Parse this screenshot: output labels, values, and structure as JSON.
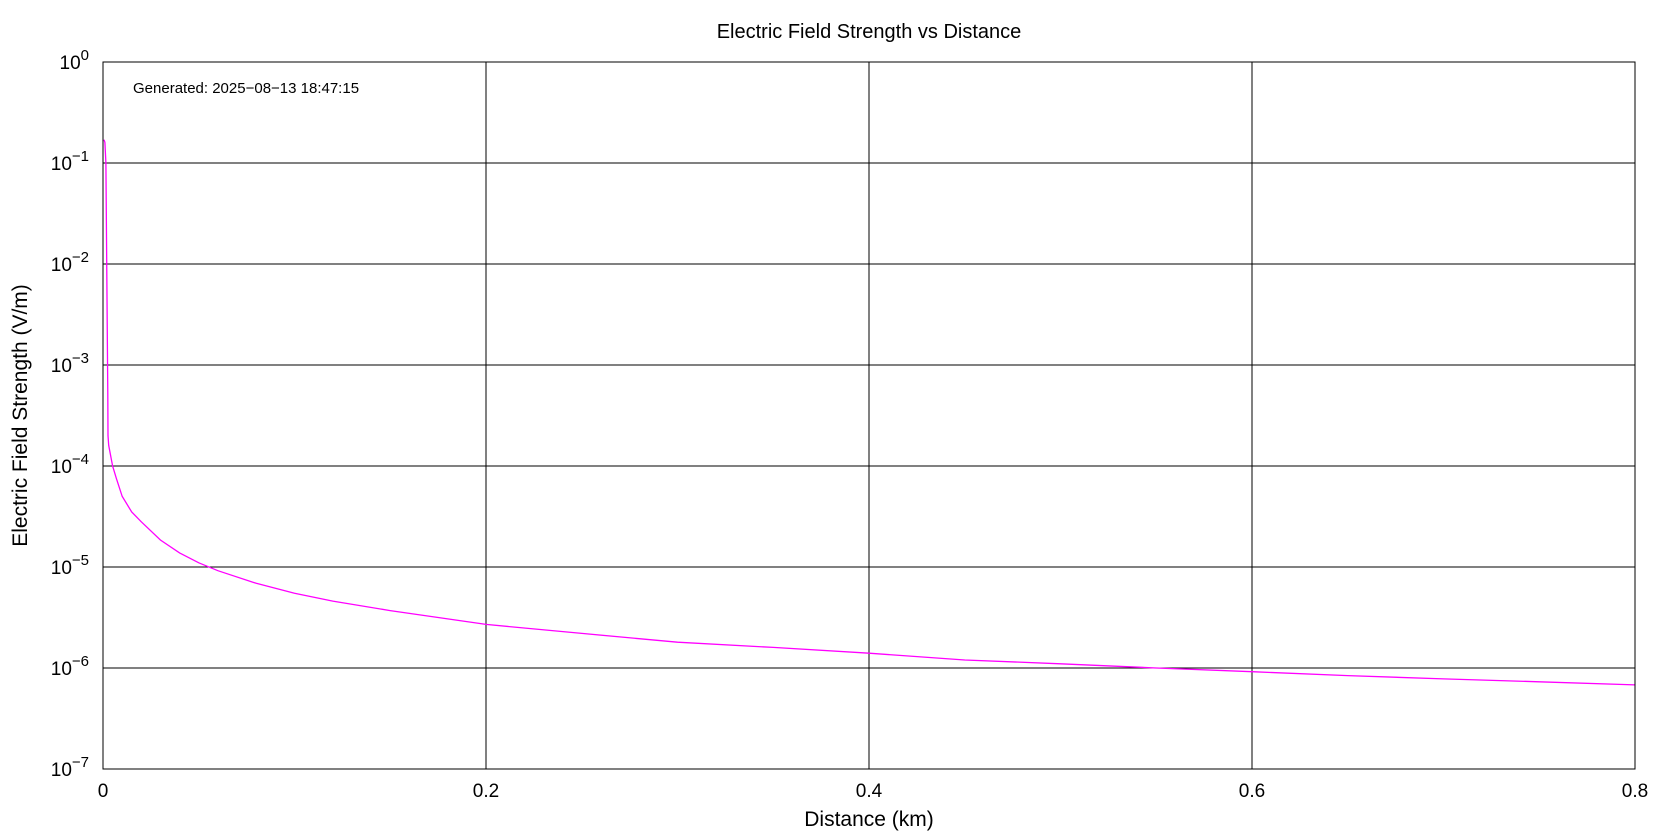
{
  "chart_data": {
    "type": "line",
    "title": "Electric Field Strength vs Distance",
    "xlabel": "Distance (km)",
    "ylabel": "Electric Field Strength (V/m)",
    "annotation": "Generated: 2025−08−13 18:47:15",
    "xlim": [
      0,
      0.8
    ],
    "ylim": [
      1e-07,
      1
    ],
    "yscale": "log",
    "grid": true,
    "x_ticks": [
      0,
      0.2,
      0.4,
      0.6,
      0.8
    ],
    "x_tick_labels": [
      "0",
      "0.2",
      "0.4",
      "0.6",
      "0.8"
    ],
    "y_tick_exponents": [
      0,
      -1,
      -2,
      -3,
      -4,
      -5,
      -6,
      -7
    ],
    "y_tick_base": "10",
    "series": [
      {
        "color": "#ff00ff",
        "x": [
          0.0005,
          0.001,
          0.0015,
          0.0025,
          0.0026,
          0.003,
          0.005,
          0.007,
          0.01,
          0.015,
          0.02,
          0.03,
          0.04,
          0.05,
          0.06,
          0.08,
          0.1,
          0.12,
          0.15,
          0.2,
          0.25,
          0.3,
          0.35,
          0.4,
          0.45,
          0.5,
          0.55,
          0.6,
          0.65,
          0.7,
          0.75,
          0.8
        ],
        "y": [
          0.17,
          0.16,
          0.1,
          0.0005,
          0.0002,
          0.00016,
          0.0001,
          7.5e-05,
          5e-05,
          3.5e-05,
          2.8e-05,
          1.85e-05,
          1.38e-05,
          1.1e-05,
          9.2e-06,
          6.9e-06,
          5.5e-06,
          4.6e-06,
          3.7e-06,
          2.7e-06,
          2.2e-06,
          1.8e-06,
          1.6e-06,
          1.4e-06,
          1.2e-06,
          1.1e-06,
          1e-06,
          9.2e-07,
          8.4e-07,
          7.8e-07,
          7.3e-07,
          6.8e-07
        ]
      }
    ]
  }
}
